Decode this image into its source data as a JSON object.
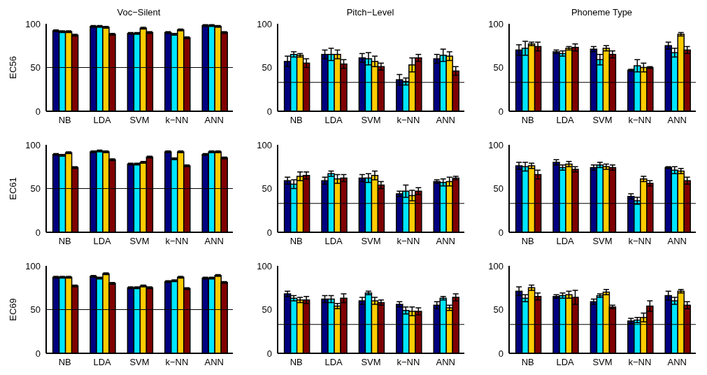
{
  "chart_data": [
    {
      "type": "bar",
      "title": "Voc−Silent",
      "ylabel": "EC56",
      "categories": [
        "NB",
        "LDA",
        "SVM",
        "k−NN",
        "ANN"
      ],
      "ylim": [
        0,
        100
      ],
      "yticks": [
        0,
        50,
        100
      ],
      "ref_lines": [
        {
          "axis": "y",
          "value": 50,
          "color": "#000000"
        }
      ],
      "series": [
        {
          "color": "#000080",
          "values": [
            92,
            97,
            89,
            90,
            98
          ],
          "errors": [
            1,
            1,
            1,
            1,
            1
          ]
        },
        {
          "color": "#00e5ff",
          "values": [
            91,
            97,
            89,
            88,
            98
          ],
          "errors": [
            1,
            1,
            1,
            1,
            1
          ]
        },
        {
          "color": "#ffcc00",
          "values": [
            91,
            96,
            95,
            93,
            97
          ],
          "errors": [
            1,
            1,
            1,
            1,
            1
          ]
        },
        {
          "color": "#800000",
          "values": [
            87,
            88,
            90,
            84,
            90
          ],
          "errors": [
            1,
            1,
            1,
            1,
            1
          ]
        }
      ]
    },
    {
      "type": "bar",
      "title": "Pitch−Level",
      "categories": [
        "NB",
        "LDA",
        "SVM",
        "k−NN",
        "ANN"
      ],
      "ylim": [
        0,
        100
      ],
      "yticks": [
        0,
        50,
        100
      ],
      "ref_lines": [
        {
          "axis": "y",
          "value": 33,
          "color": "#000000"
        }
      ],
      "series": [
        {
          "color": "#000080",
          "values": [
            57,
            65,
            61,
            36,
            60
          ],
          "errors": [
            6,
            5,
            5,
            6,
            5
          ]
        },
        {
          "color": "#00e5ff",
          "values": [
            65,
            65,
            60,
            34,
            64
          ],
          "errors": [
            3,
            7,
            7,
            4,
            7
          ]
        },
        {
          "color": "#ffcc00",
          "values": [
            64,
            65,
            57,
            53,
            63
          ],
          "errors": [
            2,
            5,
            6,
            8,
            5
          ]
        },
        {
          "color": "#800000",
          "values": [
            55,
            54,
            51,
            61,
            46
          ],
          "errors": [
            5,
            5,
            4,
            4,
            5
          ]
        }
      ]
    },
    {
      "type": "bar",
      "title": "Phoneme Type",
      "categories": [
        "NB",
        "LDA",
        "SVM",
        "k−NN",
        "ANN"
      ],
      "ylim": [
        0,
        100
      ],
      "yticks": [
        0,
        50,
        100
      ],
      "ref_lines": [
        {
          "axis": "y",
          "value": 33,
          "color": "#000000"
        }
      ],
      "series": [
        {
          "color": "#000080",
          "values": [
            70,
            68,
            71,
            47,
            75
          ],
          "errors": [
            6,
            2,
            3,
            1,
            4
          ]
        },
        {
          "color": "#00e5ff",
          "values": [
            72,
            66,
            59,
            52,
            67
          ],
          "errors": [
            8,
            3,
            6,
            7,
            5
          ]
        },
        {
          "color": "#ffcc00",
          "values": [
            77,
            72,
            72,
            50,
            88
          ],
          "errors": [
            2,
            2,
            3,
            5,
            2
          ]
        },
        {
          "color": "#800000",
          "values": [
            74,
            73,
            65,
            50,
            70
          ],
          "errors": [
            5,
            4,
            4,
            1,
            4
          ]
        }
      ]
    },
    {
      "type": "bar",
      "ylabel": "EC61",
      "categories": [
        "NB",
        "LDA",
        "SVM",
        "k−NN",
        "ANN"
      ],
      "ylim": [
        0,
        100
      ],
      "yticks": [
        0,
        50,
        100
      ],
      "ref_lines": [
        {
          "axis": "y",
          "value": 50,
          "color": "#000000"
        }
      ],
      "series": [
        {
          "color": "#000080",
          "values": [
            89,
            92,
            78,
            92,
            89
          ],
          "errors": [
            1,
            1,
            1,
            1,
            1
          ]
        },
        {
          "color": "#00e5ff",
          "values": [
            88,
            93,
            78,
            84,
            92
          ],
          "errors": [
            1,
            1,
            1,
            1,
            1
          ]
        },
        {
          "color": "#ffcc00",
          "values": [
            91,
            92,
            80,
            92,
            92
          ],
          "errors": [
            1,
            1,
            1,
            1,
            1
          ]
        },
        {
          "color": "#800000",
          "values": [
            74,
            83,
            86,
            76,
            85
          ],
          "errors": [
            1,
            1,
            1,
            1,
            1
          ]
        }
      ]
    },
    {
      "type": "bar",
      "categories": [
        "NB",
        "LDA",
        "SVM",
        "k−NN",
        "ANN"
      ],
      "ylim": [
        0,
        100
      ],
      "yticks": [
        0,
        50,
        100
      ],
      "ref_lines": [
        {
          "axis": "y",
          "value": 33,
          "color": "#000000"
        }
      ],
      "series": [
        {
          "color": "#000080",
          "values": [
            59,
            59,
            62,
            44,
            58
          ],
          "errors": [
            4,
            4,
            4,
            3,
            2
          ]
        },
        {
          "color": "#00e5ff",
          "values": [
            55,
            67,
            62,
            47,
            57
          ],
          "errors": [
            5,
            3,
            5,
            7,
            4
          ]
        },
        {
          "color": "#ffcc00",
          "values": [
            64,
            61,
            65,
            42,
            58
          ],
          "errors": [
            5,
            5,
            5,
            6,
            5
          ]
        },
        {
          "color": "#800000",
          "values": [
            65,
            62,
            54,
            47,
            62
          ],
          "errors": [
            4,
            4,
            4,
            4,
            2
          ]
        }
      ]
    },
    {
      "type": "bar",
      "categories": [
        "NB",
        "LDA",
        "SVM",
        "k−NN",
        "ANN"
      ],
      "ylim": [
        0,
        100
      ],
      "yticks": [
        0,
        50,
        100
      ],
      "ref_lines": [
        {
          "axis": "y",
          "value": 33,
          "color": "#000000"
        }
      ],
      "series": [
        {
          "color": "#000080",
          "values": [
            76,
            80,
            74,
            41,
            74
          ],
          "errors": [
            4,
            3,
            3,
            3,
            1
          ]
        },
        {
          "color": "#00e5ff",
          "values": [
            75,
            74,
            77,
            36,
            71
          ],
          "errors": [
            5,
            3,
            3,
            4,
            4
          ]
        },
        {
          "color": "#ffcc00",
          "values": [
            76,
            78,
            75,
            61,
            70
          ],
          "errors": [
            3,
            3,
            3,
            3,
            3
          ]
        },
        {
          "color": "#800000",
          "values": [
            66,
            72,
            74,
            56,
            59
          ],
          "errors": [
            5,
            3,
            3,
            3,
            4
          ]
        }
      ]
    },
    {
      "type": "bar",
      "ylabel": "EC69",
      "categories": [
        "NB",
        "LDA",
        "SVM",
        "k−NN",
        "ANN"
      ],
      "ylim": [
        0,
        100
      ],
      "yticks": [
        0,
        50,
        100
      ],
      "ref_lines": [
        {
          "axis": "y",
          "value": 50,
          "color": "#000000"
        }
      ],
      "series": [
        {
          "color": "#000080",
          "values": [
            87,
            88,
            75,
            82,
            86
          ],
          "errors": [
            1,
            1,
            1,
            1,
            1
          ]
        },
        {
          "color": "#00e5ff",
          "values": [
            87,
            86,
            75,
            83,
            86
          ],
          "errors": [
            1,
            1,
            1,
            1,
            1
          ]
        },
        {
          "color": "#ffcc00",
          "values": [
            87,
            91,
            77,
            87,
            89
          ],
          "errors": [
            1,
            1,
            1,
            1,
            1
          ]
        },
        {
          "color": "#800000",
          "values": [
            77,
            80,
            75,
            74,
            81
          ],
          "errors": [
            1,
            1,
            1,
            1,
            1
          ]
        }
      ]
    },
    {
      "type": "bar",
      "categories": [
        "NB",
        "LDA",
        "SVM",
        "k−NN",
        "ANN"
      ],
      "ylim": [
        0,
        100
      ],
      "yticks": [
        0,
        50,
        100
      ],
      "ref_lines": [
        {
          "axis": "y",
          "value": 33,
          "color": "#000000"
        }
      ],
      "series": [
        {
          "color": "#000080",
          "values": [
            68,
            62,
            60,
            56,
            55
          ],
          "errors": [
            3,
            4,
            4,
            3,
            4
          ]
        },
        {
          "color": "#00e5ff",
          "values": [
            63,
            62,
            69,
            49,
            63
          ],
          "errors": [
            3,
            4,
            2,
            4,
            2
          ]
        },
        {
          "color": "#ffcc00",
          "values": [
            61,
            54,
            60,
            48,
            52
          ],
          "errors": [
            3,
            3,
            4,
            5,
            3
          ]
        },
        {
          "color": "#800000",
          "values": [
            61,
            63,
            58,
            48,
            64
          ],
          "errors": [
            4,
            5,
            3,
            4,
            4
          ]
        }
      ]
    },
    {
      "type": "bar",
      "categories": [
        "NB",
        "LDA",
        "SVM",
        "k−NN",
        "ANN"
      ],
      "ylim": [
        0,
        100
      ],
      "yticks": [
        0,
        50,
        100
      ],
      "ref_lines": [
        {
          "axis": "y",
          "value": 33,
          "color": "#000000"
        }
      ],
      "series": [
        {
          "color": "#000080",
          "values": [
            71,
            65,
            59,
            37,
            66
          ],
          "errors": [
            5,
            2,
            3,
            3,
            5
          ]
        },
        {
          "color": "#00e5ff",
          "values": [
            63,
            66,
            66,
            38,
            60
          ],
          "errors": [
            4,
            3,
            2,
            3,
            4
          ]
        },
        {
          "color": "#ffcc00",
          "values": [
            75,
            67,
            70,
            41,
            71
          ],
          "errors": [
            3,
            4,
            3,
            5,
            2
          ]
        },
        {
          "color": "#800000",
          "values": [
            65,
            64,
            53,
            54,
            55
          ],
          "errors": [
            4,
            8,
            2,
            6,
            4
          ]
        }
      ]
    }
  ]
}
